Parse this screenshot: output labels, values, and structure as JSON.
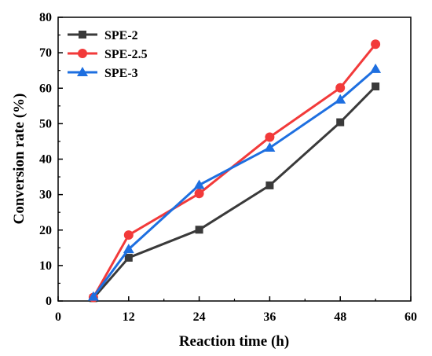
{
  "chart_data": {
    "type": "line",
    "xlabel": "Reaction time (h)",
    "ylabel": "Conversion rate (%)",
    "xlim": [
      0,
      60
    ],
    "ylim": [
      0,
      80
    ],
    "x_ticks": [
      0,
      12,
      24,
      36,
      48,
      60
    ],
    "y_ticks": [
      0,
      10,
      20,
      30,
      40,
      50,
      60,
      70,
      80
    ],
    "grid": false,
    "legend_position": "top-left",
    "x": [
      6,
      12,
      24,
      36,
      48,
      54
    ],
    "series": [
      {
        "name": "SPE-2",
        "marker": "square",
        "color": "#3a3a3a",
        "values": [
          0.8,
          12.2,
          20.1,
          32.6,
          50.4,
          60.5
        ]
      },
      {
        "name": "SPE-2.5",
        "marker": "circle",
        "color": "#f23a3a",
        "values": [
          1.0,
          18.6,
          30.3,
          46.2,
          60.1,
          72.4
        ]
      },
      {
        "name": "SPE-3",
        "marker": "triangle",
        "color": "#1e6fe0",
        "values": [
          1.2,
          14.6,
          32.7,
          43.2,
          56.8,
          65.4
        ]
      }
    ]
  }
}
